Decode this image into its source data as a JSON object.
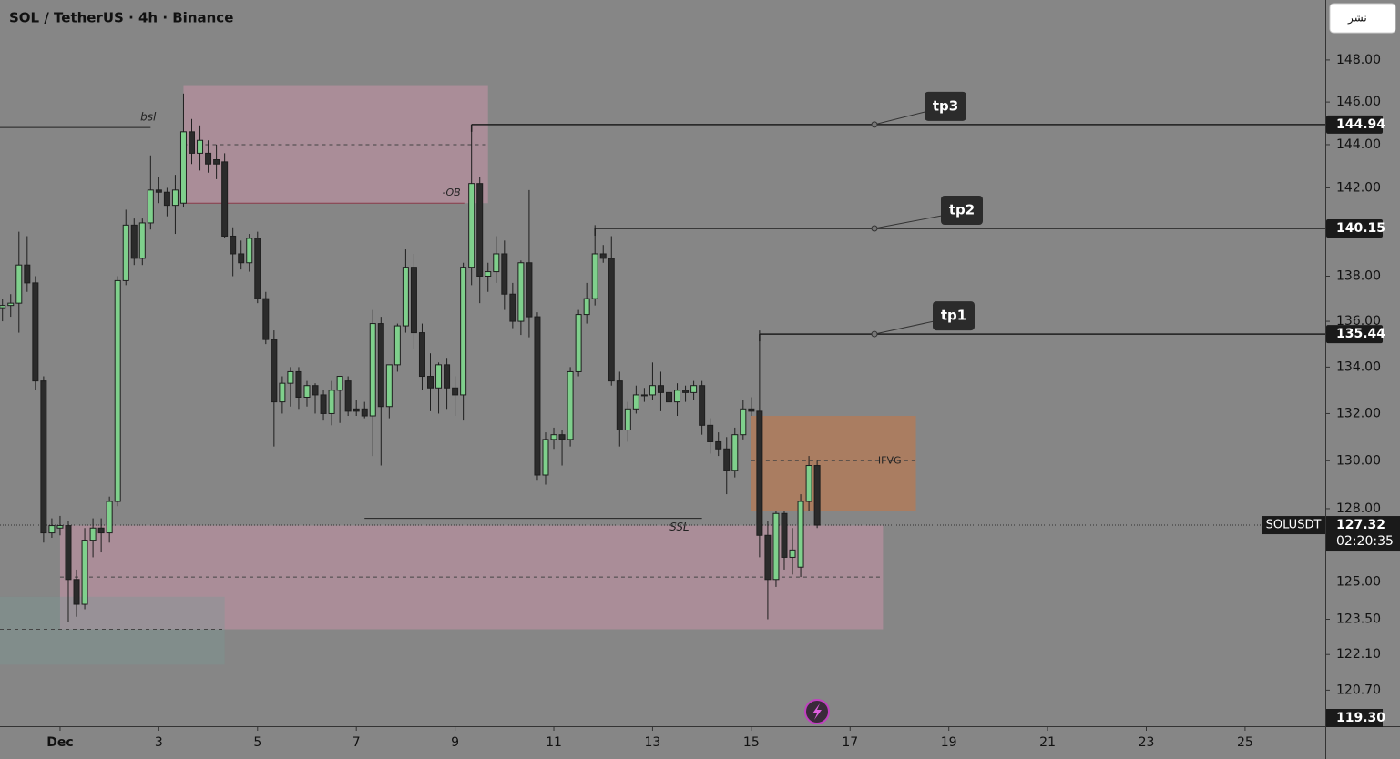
{
  "chart_data": {
    "type": "candlestick",
    "title": "SOL / TetherUS · 4h · Binance",
    "publish_button": "نشر",
    "symbol": "SOLUSDT",
    "last_price": {
      "value": 127.32,
      "label": "127.32"
    },
    "countdown": "02:20:35",
    "log_scale": true,
    "grid": false,
    "ylim": [
      119.3,
      150.9
    ],
    "yticks": [
      {
        "value": 148,
        "label": "148.00"
      },
      {
        "value": 146,
        "label": "146.00"
      },
      {
        "value": 144,
        "label": "144.00"
      },
      {
        "value": 142,
        "label": "142.00"
      },
      {
        "value": 138,
        "label": "138.00"
      },
      {
        "value": 136,
        "label": "136.00"
      },
      {
        "value": 134,
        "label": "134.00"
      },
      {
        "value": 132,
        "label": "132.00"
      },
      {
        "value": 130,
        "label": "130.00"
      },
      {
        "value": 128,
        "label": "128.00"
      },
      {
        "value": 125,
        "label": "125.00"
      },
      {
        "value": 123.5,
        "label": "123.50"
      },
      {
        "value": 122.1,
        "label": "122.10"
      },
      {
        "value": 120.7,
        "label": "120.70"
      }
    ],
    "bottom_price": {
      "value": 119.3,
      "label": "119.30"
    },
    "xlim": [
      -29.2,
      615
    ],
    "xticks": [
      {
        "value": 0,
        "label": "Dec"
      },
      {
        "value": 48,
        "label": "3"
      },
      {
        "value": 96,
        "label": "5"
      },
      {
        "value": 144,
        "label": "7"
      },
      {
        "value": 192,
        "label": "9"
      },
      {
        "value": 240,
        "label": "11"
      },
      {
        "value": 288,
        "label": "13"
      },
      {
        "value": 336,
        "label": "15"
      },
      {
        "value": 384,
        "label": "17"
      },
      {
        "value": 432,
        "label": "19"
      },
      {
        "value": 480,
        "label": "21"
      },
      {
        "value": 528,
        "label": "23"
      },
      {
        "value": 576,
        "label": "25"
      }
    ],
    "up_color": "#7fd08c",
    "down_color": "#2b2b2b",
    "candles": {
      "x": [
        -28,
        -24,
        -20,
        -16,
        -12,
        -8,
        -4,
        0,
        4,
        8,
        12,
        16,
        20,
        24,
        28,
        32,
        36,
        40,
        44,
        48,
        52,
        56,
        60,
        64,
        68,
        72,
        76,
        80,
        84,
        88,
        92,
        96,
        100,
        104,
        108,
        112,
        116,
        120,
        124,
        128,
        132,
        136,
        140,
        144,
        148,
        152,
        156,
        160,
        164,
        168,
        172,
        176,
        180,
        184,
        188,
        192,
        196,
        200,
        204,
        208,
        212,
        216,
        220,
        224,
        228,
        232,
        236,
        240,
        244,
        248,
        252,
        256,
        260,
        264,
        268,
        272,
        276,
        280,
        284,
        288,
        292,
        296,
        300,
        304,
        308,
        312,
        316,
        320,
        324,
        328,
        332,
        336,
        340,
        344,
        348,
        352,
        356,
        360,
        364,
        368
      ],
      "open": [
        136.6,
        136.7,
        136.8,
        138.5,
        137.7,
        133.4,
        127.0,
        127.2,
        127.3,
        125.1,
        124.1,
        126.7,
        127.2,
        127.0,
        128.3,
        137.8,
        140.3,
        138.8,
        140.4,
        141.9,
        141.8,
        141.2,
        141.3,
        144.6,
        143.6,
        143.6,
        143.3,
        143.2,
        139.8,
        139.0,
        138.6,
        139.7,
        137.0,
        135.2,
        132.5,
        133.3,
        133.8,
        132.7,
        133.2,
        132.8,
        132.0,
        133.0,
        133.4,
        132.2,
        132.2,
        131.9,
        135.9,
        132.3,
        134.1,
        135.8,
        138.4,
        135.5,
        133.6,
        133.1,
        134.1,
        133.1,
        132.8,
        138.4,
        142.2,
        138.0,
        138.2,
        139.0,
        137.2,
        136.0,
        138.6,
        136.2,
        129.4,
        130.9,
        131.1,
        130.9,
        133.8,
        136.3,
        137.0,
        139.0,
        138.8,
        133.4,
        131.3,
        132.2,
        132.8,
        132.8,
        133.2,
        132.9,
        132.5,
        133.0,
        132.9,
        133.2,
        131.5,
        130.8,
        130.5,
        129.6,
        131.1,
        132.2,
        132.1,
        126.9,
        125.1,
        127.8,
        126.0,
        125.6,
        128.3,
        129.8
      ],
      "high": [
        137.0,
        137.2,
        140.0,
        139.8,
        138.0,
        133.6,
        127.6,
        127.7,
        127.5,
        125.5,
        127.2,
        127.6,
        127.6,
        128.5,
        138.0,
        141.0,
        140.6,
        140.6,
        143.5,
        142.5,
        142.0,
        142.6,
        146.4,
        145.2,
        144.9,
        144.2,
        144.0,
        143.6,
        140.2,
        139.6,
        139.9,
        140.0,
        137.3,
        135.6,
        133.6,
        134.0,
        134.0,
        133.4,
        133.3,
        133.0,
        133.4,
        133.6,
        133.6,
        132.6,
        132.5,
        136.5,
        136.2,
        134.1,
        135.9,
        139.2,
        139.0,
        135.9,
        134.6,
        134.2,
        134.4,
        133.6,
        138.6,
        144.9,
        142.5,
        138.6,
        139.8,
        139.6,
        137.7,
        138.7,
        141.9,
        136.4,
        131.2,
        131.4,
        131.3,
        134.0,
        136.5,
        137.7,
        140.3,
        139.4,
        139.8,
        133.8,
        132.5,
        133.2,
        133.1,
        134.2,
        133.8,
        133.6,
        133.3,
        133.2,
        133.4,
        133.4,
        131.8,
        131.2,
        131.0,
        131.4,
        132.6,
        132.7,
        135.6,
        127.5,
        127.9,
        127.9,
        127.2,
        128.6,
        130.2,
        130.0
      ],
      "low": [
        136.0,
        136.2,
        135.5,
        137.3,
        133.0,
        126.6,
        126.8,
        126.9,
        123.4,
        123.6,
        123.9,
        126.0,
        126.2,
        126.6,
        128.1,
        137.6,
        138.5,
        138.5,
        140.1,
        141.3,
        140.7,
        139.9,
        141.1,
        143.1,
        142.8,
        142.7,
        142.4,
        139.7,
        138.0,
        138.3,
        138.2,
        136.8,
        135.0,
        130.6,
        132.0,
        132.3,
        132.2,
        132.3,
        132.0,
        131.7,
        131.5,
        131.6,
        131.9,
        131.9,
        131.8,
        130.2,
        129.8,
        131.8,
        133.8,
        135.5,
        134.8,
        133.0,
        132.1,
        132.0,
        132.2,
        131.9,
        131.7,
        137.6,
        136.8,
        137.3,
        137.7,
        136.5,
        135.7,
        135.4,
        135.3,
        129.2,
        129.0,
        130.5,
        129.8,
        130.6,
        133.6,
        135.9,
        136.7,
        138.6,
        133.2,
        130.6,
        130.8,
        132.0,
        132.5,
        132.6,
        132.1,
        132.2,
        131.9,
        132.5,
        132.6,
        131.1,
        130.3,
        130.2,
        128.6,
        129.3,
        130.9,
        131.9,
        126.0,
        123.5,
        124.8,
        125.5,
        125.3,
        125.2,
        127.9,
        127.2
      ],
      "close": [
        136.7,
        136.8,
        138.5,
        137.7,
        133.4,
        127.0,
        127.3,
        127.3,
        125.1,
        124.1,
        126.7,
        127.2,
        127.0,
        128.3,
        137.8,
        140.3,
        138.8,
        140.4,
        141.9,
        141.8,
        141.2,
        141.9,
        144.6,
        143.6,
        144.2,
        143.1,
        143.1,
        139.8,
        139.0,
        138.6,
        139.7,
        137.0,
        135.2,
        132.5,
        133.3,
        133.8,
        132.7,
        133.2,
        132.8,
        132.0,
        133.0,
        133.6,
        132.1,
        132.1,
        131.9,
        135.9,
        132.3,
        134.1,
        135.8,
        138.4,
        135.5,
        133.6,
        133.1,
        134.1,
        133.1,
        132.8,
        138.4,
        142.2,
        138.0,
        138.2,
        139.0,
        137.2,
        136.0,
        138.6,
        136.2,
        129.4,
        130.9,
        131.1,
        130.9,
        133.8,
        136.3,
        137.0,
        139.0,
        138.8,
        133.4,
        131.3,
        132.2,
        132.8,
        132.8,
        133.2,
        132.9,
        132.5,
        133.0,
        132.9,
        133.2,
        131.5,
        130.8,
        130.5,
        129.6,
        131.1,
        132.2,
        132.1,
        126.9,
        125.1,
        127.8,
        126.0,
        126.3,
        128.3,
        129.8,
        127.32
      ]
    },
    "zones": [
      {
        "label": "-OB",
        "x": [
          60,
          208
        ],
        "y": [
          141.3,
          146.8
        ],
        "mid": 144.0,
        "color": "rgba(214,150,175,0.45)"
      },
      {
        "x": [
          0,
          400
        ],
        "y": [
          123.1,
          127.3
        ],
        "mid": 125.2,
        "color": "rgba(214,150,175,0.45)"
      },
      {
        "label": "IFVG",
        "x": [
          336,
          416
        ],
        "y": [
          127.9,
          131.9
        ],
        "mid": 130.0,
        "color": "rgba(205,115,60,0.5)"
      },
      {
        "x": [
          -29.2,
          80
        ],
        "y": [
          121.7,
          124.4
        ],
        "mid": 123.1,
        "color": "rgba(120,155,150,0.35)"
      }
    ],
    "liquidity": [
      {
        "label": "bsl",
        "value": 144.8,
        "x": [
          -29.2,
          44
        ]
      },
      {
        "label": "SSL",
        "value": 127.6,
        "x": [
          148,
          312
        ]
      }
    ],
    "targets": [
      {
        "label": "tp3",
        "price": {
          "value": 144.94,
          "label": "144.94"
        },
        "x_start": 200
      },
      {
        "label": "tp2",
        "price": {
          "value": 140.15,
          "label": "140.15"
        },
        "x_start": 260
      },
      {
        "label": "tp1",
        "price": {
          "value": 135.44,
          "label": "135.44"
        },
        "x_start": 340
      }
    ]
  }
}
